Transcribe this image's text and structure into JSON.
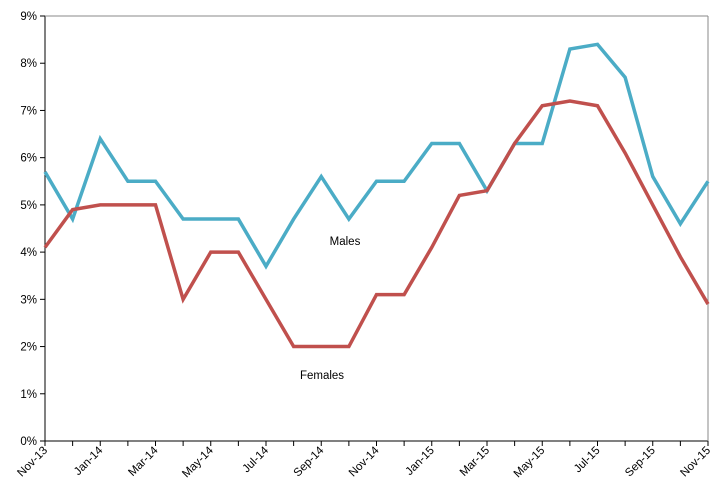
{
  "chart_data": {
    "type": "line",
    "categories": [
      "Nov-13",
      null,
      "Jan-14",
      null,
      "Mar-14",
      null,
      "May-14",
      null,
      "Jul-14",
      null,
      "Sep-14",
      null,
      "Nov-14",
      null,
      "Jan-15",
      null,
      "Mar-15",
      null,
      "May-15",
      null,
      "Jul-15",
      null,
      "Sep-15",
      null,
      "Nov-15"
    ],
    "series": [
      {
        "name": "Males",
        "color": "#4bacc6",
        "values": [
          5.7,
          4.7,
          6.4,
          5.5,
          5.5,
          4.7,
          4.7,
          4.7,
          3.7,
          4.7,
          5.6,
          4.7,
          5.5,
          5.5,
          6.3,
          6.3,
          5.3,
          6.3,
          6.3,
          8.3,
          8.4,
          7.7,
          5.6,
          4.6,
          5.5
        ]
      },
      {
        "name": "Females",
        "color": "#c0504d",
        "values": [
          4.1,
          4.9,
          5.0,
          5.0,
          5.0,
          3.0,
          4.0,
          4.0,
          3.0,
          2.0,
          2.0,
          2.0,
          3.1,
          3.1,
          4.1,
          5.2,
          5.3,
          6.3,
          7.1,
          7.2,
          7.1,
          6.1,
          5.0,
          3.9,
          2.9
        ]
      }
    ],
    "ylim": [
      0,
      9
    ],
    "yticks": [
      {
        "value": 0,
        "label": "0%"
      },
      {
        "value": 1,
        "label": "1%"
      },
      {
        "value": 2,
        "label": "2%"
      },
      {
        "value": 3,
        "label": "3%"
      },
      {
        "value": 4,
        "label": "4%"
      },
      {
        "value": 5,
        "label": "5%"
      },
      {
        "value": 6,
        "label": "6%"
      },
      {
        "value": 7,
        "label": "7%"
      },
      {
        "value": 8,
        "label": "8%"
      },
      {
        "value": 9,
        "label": "9%"
      }
    ],
    "grid": false
  }
}
